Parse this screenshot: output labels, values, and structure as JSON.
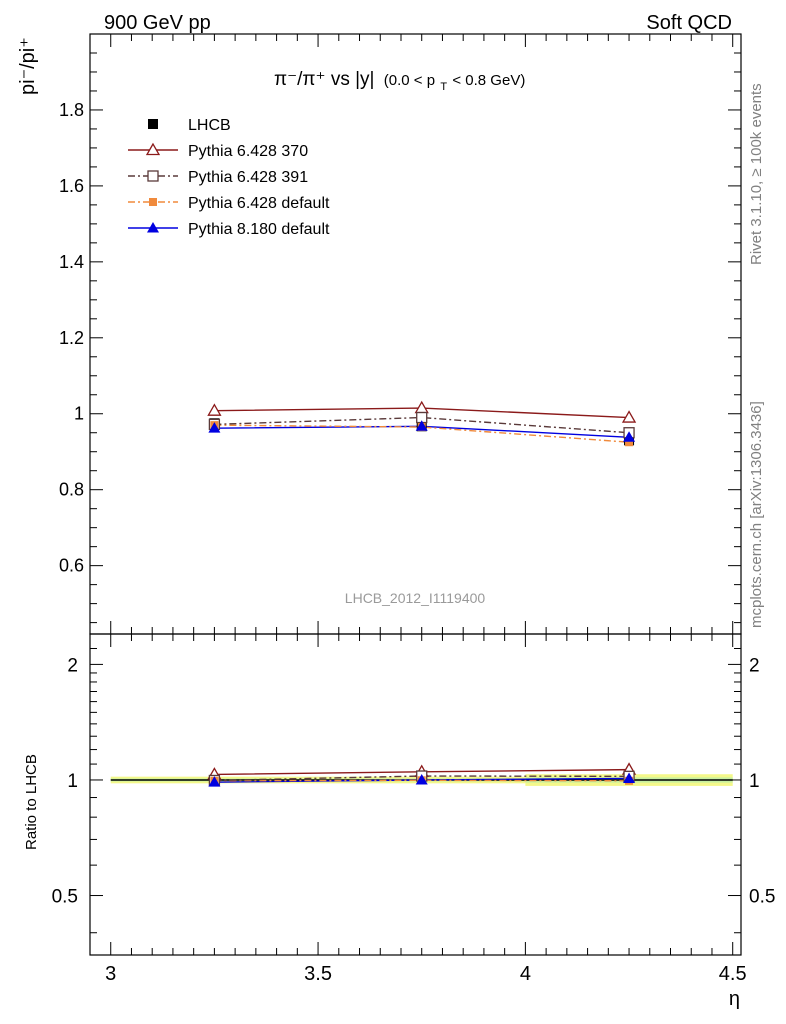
{
  "header": {
    "left": "900 GeV pp",
    "right": "Soft QCD"
  },
  "side_labels": {
    "rivet": "Rivet 3.1.10, ≥ 100k events",
    "mcplots": "mcplots.cern.ch [arXiv:1306.3436]"
  },
  "watermark": "LHCB_2012_I1119400",
  "chart_data": [
    {
      "type": "line",
      "panel": "main",
      "title": "π⁻/π⁺ vs |y| (0.0 < p_T < 0.8 GeV)",
      "title_main": "π⁻/π⁺ vs |y|",
      "title_cut": "(0.0 < p",
      "title_cut_sub": "T",
      "title_cut_end": " < 0.8 GeV)",
      "ylabel": "pi⁻/pi⁺",
      "xlabel": "η",
      "xlim": [
        2.95,
        4.52
      ],
      "ylim": [
        0.42,
        2.0
      ],
      "y_ticks": [
        0.6,
        0.8,
        1.0,
        1.2,
        1.4,
        1.6,
        1.8
      ],
      "y_tick_labels": [
        "0.6",
        "0.8",
        "1",
        "1.2",
        "1.4",
        "1.6",
        "1.8"
      ],
      "x": [
        3.25,
        3.75,
        4.25
      ],
      "series": [
        {
          "name": "LHCB",
          "values": [
            0.975,
            0.967,
            0.93
          ],
          "color": "#000000",
          "marker": "square-filled",
          "line": "none"
        },
        {
          "name": "Pythia 6.428 370",
          "values": [
            1.008,
            1.015,
            0.99
          ],
          "color": "#8b1a1a",
          "marker": "triangle-open",
          "line": "solid"
        },
        {
          "name": "Pythia 6.428 391",
          "values": [
            0.972,
            0.99,
            0.95
          ],
          "color": "#5a3a3a",
          "marker": "square-open",
          "line": "dashdot"
        },
        {
          "name": "Pythia 6.428 default",
          "values": [
            0.97,
            0.965,
            0.925
          ],
          "color": "#f08a3c",
          "marker": "square-filled-small",
          "line": "dashdot"
        },
        {
          "name": "Pythia 8.180 default",
          "values": [
            0.962,
            0.967,
            0.938
          ],
          "color": "#0000e0",
          "marker": "triangle-filled",
          "line": "solid"
        }
      ]
    },
    {
      "type": "line",
      "panel": "ratio",
      "ylabel": "Ratio to LHCB",
      "xlabel": "η",
      "xlim": [
        2.95,
        4.52
      ],
      "ylim": [
        0.35,
        2.4
      ],
      "y_scale": "log",
      "y_ticks": [
        0.5,
        1,
        2
      ],
      "y_tick_labels": [
        "0.5",
        "1",
        "2"
      ],
      "x_ticks": [
        3,
        3.5,
        4,
        4.5
      ],
      "x_tick_labels": [
        "3",
        "3.5",
        "4",
        "4.5"
      ],
      "x": [
        3.25,
        3.75,
        4.25
      ],
      "band": {
        "edges": [
          3.0,
          3.5,
          4.0,
          4.5
        ],
        "half_width": [
          0.02,
          0.02,
          0.035
        ],
        "color": "#f4f88a",
        "inner_color": "#c8f0a0"
      },
      "series": [
        {
          "name": "Pythia 6.428 370",
          "values": [
            1.034,
            1.05,
            1.064
          ]
        },
        {
          "name": "Pythia 6.428 391",
          "values": [
            0.997,
            1.024,
            1.022
          ]
        },
        {
          "name": "Pythia 6.428 default",
          "values": [
            0.995,
            0.998,
            0.995
          ]
        },
        {
          "name": "Pythia 8.180 default",
          "values": [
            0.987,
            1.0,
            1.009
          ]
        }
      ]
    }
  ]
}
